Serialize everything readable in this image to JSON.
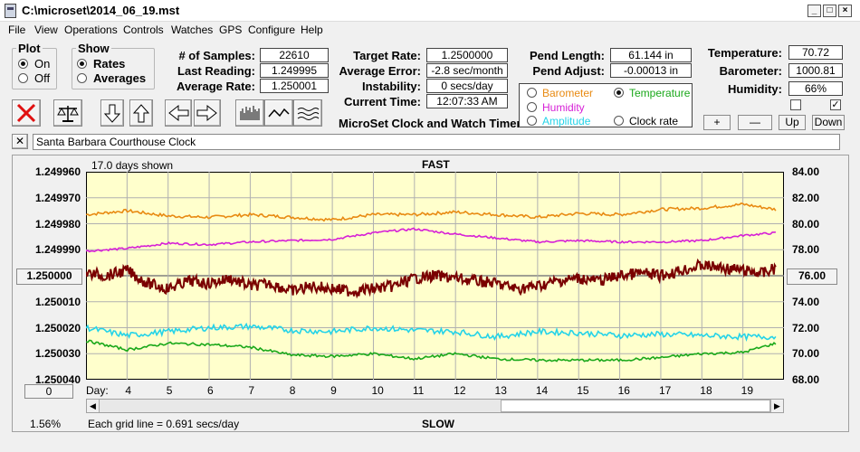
{
  "window": {
    "title": "C:\\microset\\2014_06_19.mst"
  },
  "menu": [
    "File",
    "View",
    "Operations",
    "Controls",
    "Watches",
    "GPS",
    "Configure",
    "Help"
  ],
  "plot_group": {
    "title": "Plot",
    "on": "On",
    "off": "Off",
    "selected": "On"
  },
  "show_group": {
    "title": "Show",
    "rates": "Rates",
    "averages": "Averages",
    "selected": "Rates"
  },
  "stats": {
    "samples_label": "# of Samples:",
    "samples": "22610",
    "last_label": "Last Reading:",
    "last": "1.249995",
    "avg_label": "Average Rate:",
    "avg": "1.250001",
    "target_label": "Target Rate:",
    "target": "1.2500000",
    "avgerr_label": "Average Error:",
    "avgerr": "-2.8 sec/month",
    "instab_label": "Instability:",
    "instab": "0 secs/day",
    "time_label": "Current Time:",
    "time": "12:07:33 AM",
    "pendlen_label": "Pend Length:",
    "pendlen": "61.144 in",
    "pendadj_label": "Pend Adjust:",
    "pendadj": "-0.00013 in",
    "temp_label": "Temperature:",
    "temp": "70.72",
    "baro_label": "Barometer:",
    "baro": "1000.81",
    "hum_label": "Humidity:",
    "hum": "66%"
  },
  "app_name": "MicroSet Clock and Watch Timer",
  "sensor_options": {
    "barometer": "Barometer",
    "temperature": "Temperature",
    "humidity": "Humidity",
    "amplitude": "Amplitude",
    "clock_rate": "Clock rate",
    "selected": "Temperature"
  },
  "right_buttons": {
    "plus": "+",
    "minus": "—",
    "up": "Up",
    "down": "Down"
  },
  "checkboxes": [
    false,
    true
  ],
  "clock_name": "Santa Barbara Courthouse Clock",
  "colors": {
    "barometer": "#e88a12",
    "humidity": "#d61fd6",
    "rate": "#7a0000",
    "amplitude": "#24d3e8",
    "temperature": "#1aa81a",
    "plot_bg": "#ffffcc",
    "grid": "#b0b0b0"
  },
  "plot_labels": {
    "days_shown": "17.0 days shown",
    "fast": "FAST",
    "slow": "SLOW",
    "grid_note": "Each grid line = 0.691 secs/day",
    "percent": "1.56%",
    "day_prefix": "Day:",
    "center_left": "1.250000",
    "center_right": "76.00",
    "zero": "0"
  },
  "chart_data": {
    "type": "line",
    "title": "",
    "xlabel": "Day",
    "x_ticks": [
      4,
      5,
      6,
      7,
      8,
      9,
      10,
      11,
      12,
      13,
      14,
      15,
      16,
      17,
      18,
      19
    ],
    "x_range": [
      3.0,
      20.0
    ],
    "y_left_ticks": [
      "1.249960",
      "1.249970",
      "1.249980",
      "1.249990",
      "1.250000",
      "1.250010",
      "1.250020",
      "1.250030",
      "1.250040"
    ],
    "y_left_range": [
      1.24996,
      1.25004
    ],
    "y_left_inverted": true,
    "y_right_ticks": [
      "84.00",
      "82.00",
      "80.00",
      "78.00",
      "76.00",
      "74.00",
      "72.00",
      "70.00",
      "68.00"
    ],
    "y_right_range": [
      68,
      84
    ],
    "grid": true,
    "series": [
      {
        "key": "barometer",
        "x": [
          3.0,
          4.0,
          5.0,
          6.0,
          7.0,
          8.0,
          9.0,
          10.0,
          11.0,
          12.0,
          13.0,
          14.0,
          15.0,
          16.0,
          17.0,
          18.0,
          19.0,
          19.8
        ],
        "y": [
          80.7,
          81.0,
          80.6,
          80.5,
          80.7,
          80.5,
          80.3,
          80.7,
          80.7,
          80.9,
          80.7,
          80.5,
          80.8,
          80.7,
          81.1,
          81.2,
          81.5,
          81.1
        ]
      },
      {
        "key": "humidity",
        "x": [
          3.0,
          4.0,
          5.0,
          6.0,
          7.0,
          8.0,
          9.0,
          10.0,
          11.0,
          12.0,
          13.0,
          14.0,
          15.0,
          16.0,
          17.0,
          18.0,
          19.0,
          19.8
        ],
        "y": [
          77.9,
          78.1,
          78.5,
          78.4,
          78.6,
          78.7,
          78.8,
          79.3,
          79.6,
          79.2,
          78.9,
          78.6,
          78.7,
          78.6,
          78.6,
          78.7,
          79.1,
          79.3
        ]
      },
      {
        "key": "rate",
        "x": [
          3.0,
          3.5,
          4.0,
          4.5,
          5.0,
          5.5,
          6.0,
          6.5,
          7.0,
          7.5,
          8.0,
          8.5,
          9.0,
          9.5,
          10.0,
          10.5,
          11.0,
          11.5,
          12.0,
          12.5,
          13.0,
          13.5,
          14.0,
          14.5,
          15.0,
          15.5,
          16.0,
          16.5,
          17.0,
          17.5,
          18.0,
          18.5,
          19.0,
          19.5,
          19.8
        ],
        "y": [
          1.249999,
          1.25,
          1.249998,
          1.250003,
          1.250005,
          1.250002,
          1.250003,
          1.250001,
          1.250004,
          1.250003,
          1.250006,
          1.250004,
          1.250005,
          1.250006,
          1.250005,
          1.250004,
          1.250001,
          1.25,
          1.250001,
          1.250002,
          1.250003,
          1.250005,
          1.250004,
          1.250002,
          1.250001,
          1.250002,
          1.25,
          1.249999,
          1.25,
          1.249998,
          1.249996,
          1.249997,
          1.249998,
          1.249999,
          1.249997
        ]
      },
      {
        "key": "amplitude",
        "x": [
          3.0,
          4.0,
          5.0,
          6.0,
          7.0,
          8.0,
          9.0,
          10.0,
          11.0,
          12.0,
          13.0,
          14.0,
          15.0,
          16.0,
          17.0,
          18.0,
          19.0,
          19.8
        ],
        "y": [
          72.0,
          71.4,
          71.7,
          72.0,
          72.1,
          71.8,
          71.7,
          72.0,
          71.8,
          71.7,
          71.3,
          71.7,
          71.6,
          71.4,
          71.5,
          71.4,
          71.3,
          71.3
        ]
      },
      {
        "key": "temperature",
        "x": [
          3.0,
          4.0,
          5.0,
          6.0,
          7.0,
          8.0,
          9.0,
          10.0,
          11.0,
          12.0,
          13.0,
          14.0,
          15.0,
          16.0,
          17.0,
          18.0,
          19.0,
          19.8
        ],
        "y": [
          71.0,
          70.3,
          70.8,
          70.7,
          70.5,
          69.9,
          69.8,
          70.0,
          69.6,
          70.0,
          69.6,
          69.5,
          69.5,
          69.5,
          69.7,
          70.0,
          70.1,
          70.8
        ]
      }
    ]
  }
}
